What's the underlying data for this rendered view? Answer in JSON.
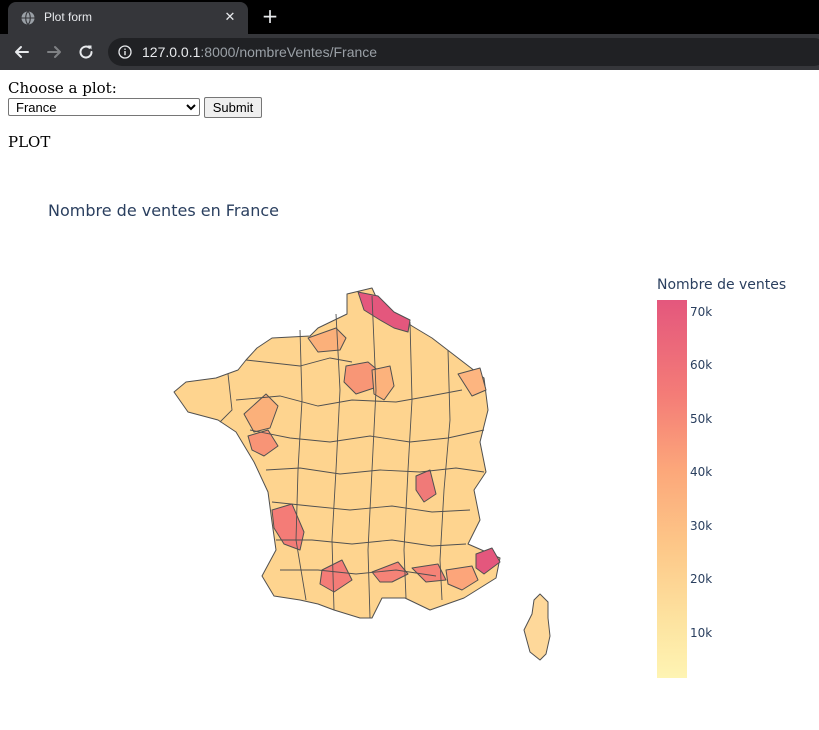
{
  "browser": {
    "tab": {
      "title": "Plot form",
      "close_glyph": "✕",
      "new_tab_glyph": "+"
    },
    "url": {
      "host": "127.0.0.1",
      "rest": ":8000/nombreVentes/France"
    },
    "icons": [
      "globe-icon",
      "back-arrow-icon",
      "forward-arrow-icon",
      "reload-icon",
      "info-icon"
    ]
  },
  "form": {
    "label": "Choose a plot:",
    "select_value": "France",
    "submit_label": "Submit"
  },
  "plot_label": "PLOT",
  "chart_data": {
    "type": "choropleth",
    "title": "Nombre de ventes en France",
    "colorbar": {
      "title": "Nombre de ventes",
      "ticks": [
        "70k",
        "60k",
        "50k",
        "40k",
        "30k",
        "20k",
        "10k"
      ],
      "tick_values": [
        70000,
        60000,
        50000,
        40000,
        30000,
        20000,
        10000
      ],
      "range": [
        1000,
        72000
      ],
      "colorscale": [
        "#fef4b3",
        "#fde3a0",
        "#fdc788",
        "#fca77a",
        "#f47c77",
        "#e4577d"
      ]
    }
  }
}
